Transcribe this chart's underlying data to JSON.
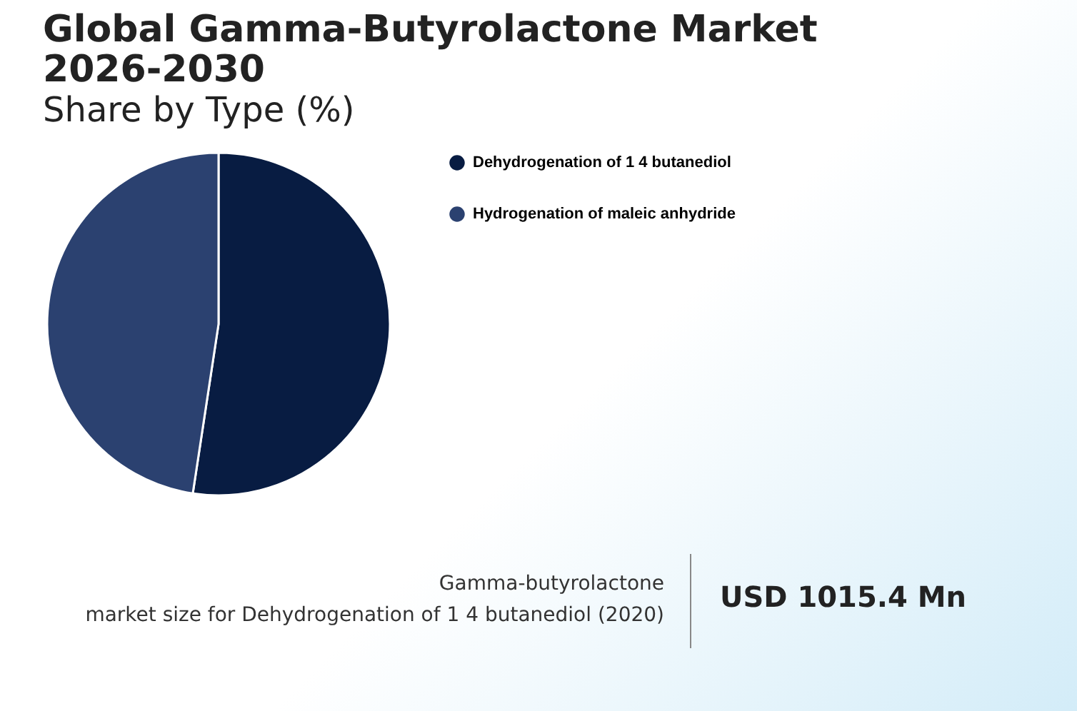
{
  "chart_data": {
    "type": "pie",
    "title": "Global Gamma-Butyrolactone Market 2026-2030",
    "subtitle": "Share by Type (%)",
    "categories": [
      "Dehydrogenation of 1 4 butanediol",
      "Hydrogenation of maleic anhydride"
    ],
    "values": [
      52.4,
      47.6
    ],
    "colors": [
      "#081c42",
      "#2b4170"
    ],
    "legend": "right",
    "annotations": [
      "Gamma-butyrolactone",
      "market size for Dehydrogenation of 1 4 butanediol (2020)",
      "USD 1015.4 Mn"
    ]
  }
}
